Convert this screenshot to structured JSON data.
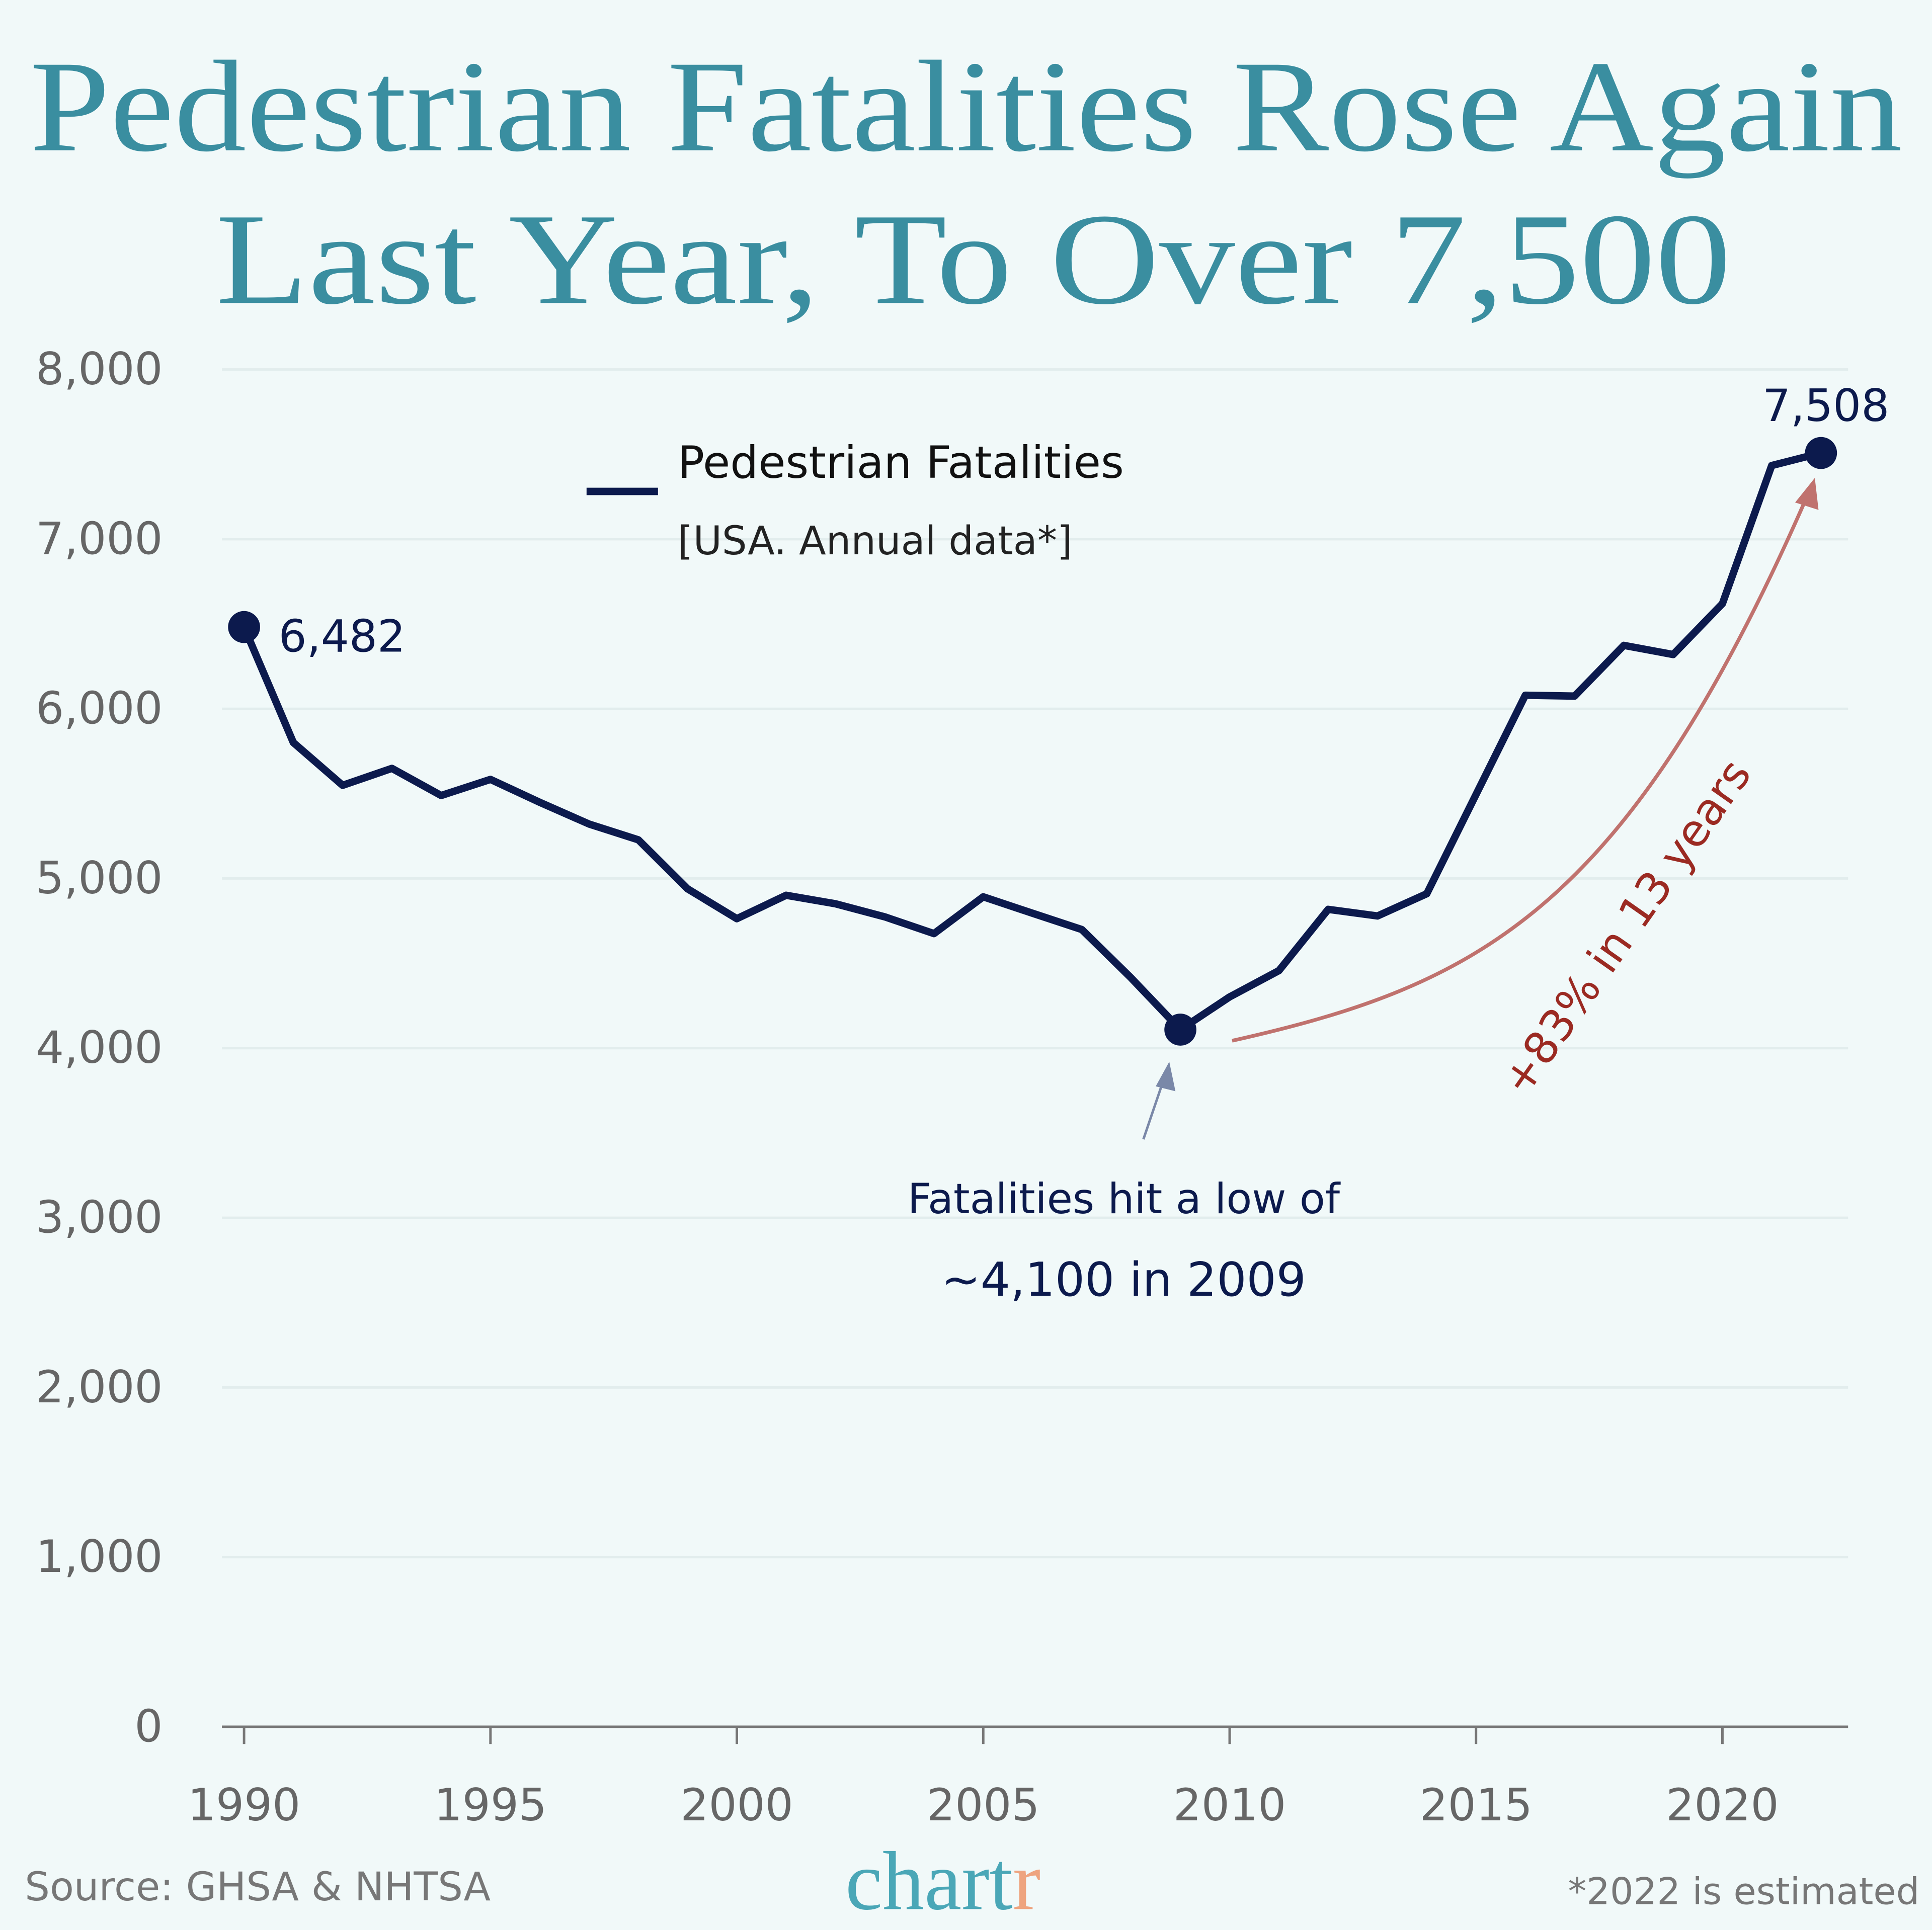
{
  "chart_data": {
    "type": "line",
    "title": [
      "Pedestrian Fatalities Rose Again",
      "Last Year, To Over 7,500"
    ],
    "x": [
      1990,
      1991,
      1992,
      1993,
      1994,
      1995,
      1996,
      1997,
      1998,
      1999,
      2000,
      2001,
      2002,
      2003,
      2004,
      2005,
      2006,
      2007,
      2008,
      2009,
      2010,
      2011,
      2012,
      2013,
      2014,
      2015,
      2016,
      2017,
      2018,
      2019,
      2020,
      2021,
      2022
    ],
    "series": [
      {
        "name": "Pedestrian Fatalities",
        "color": "#0c1a4d",
        "values": [
          6482,
          5801,
          5549,
          5649,
          5489,
          5584,
          5449,
          5321,
          5228,
          4939,
          4763,
          4901,
          4851,
          4774,
          4675,
          4892,
          4795,
          4699,
          4414,
          4109,
          4302,
          4457,
          4818,
          4779,
          4910,
          5495,
          6080,
          6075,
          6374,
          6320,
          6620,
          7434,
          7508
        ],
        "value_labels": [
          "6,482",
          null,
          null,
          null,
          null,
          null,
          null,
          null,
          null,
          null,
          null,
          null,
          null,
          null,
          null,
          null,
          null,
          null,
          null,
          null,
          null,
          null,
          null,
          null,
          null,
          null,
          null,
          null,
          null,
          null,
          null,
          null,
          "7,508"
        ]
      }
    ],
    "legend_note": "[USA. Annual data*]",
    "annotations": [
      "Fatalities hit a low of",
      "~4,100 in 2009",
      "+83% in 13 years"
    ],
    "xlim": [
      1989.55,
      2022.55
    ],
    "xticks": [
      1990,
      1995,
      2000,
      2005,
      2010,
      2015,
      2020
    ],
    "ylim": [
      0,
      8000
    ],
    "yticks": [
      0,
      {
        "value": 1000,
        "label": "1,000"
      },
      {
        "value": 2000,
        "label": "2,000"
      },
      {
        "value": 3000,
        "label": "3,000"
      },
      {
        "value": 4000,
        "label": "4,000"
      },
      {
        "value": 5000,
        "label": "5,000"
      },
      {
        "value": 6000,
        "label": "6,000"
      },
      {
        "value": 7000,
        "label": "7,000"
      },
      {
        "value": 8000,
        "label": "8,000"
      }
    ],
    "grid": true,
    "source": "Source: GHSA & NHTSA",
    "logo": [
      "chart",
      "r"
    ],
    "footnote": "*2022 is estimated"
  }
}
